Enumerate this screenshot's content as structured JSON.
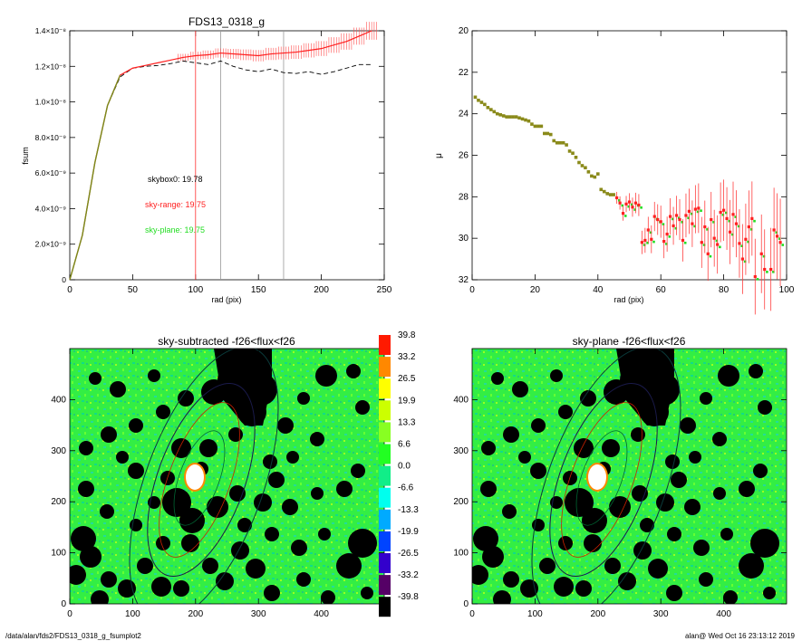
{
  "footer": {
    "path": "/data/alan/fds2/FDS13_0318_g_fsumplot2",
    "user": "alan@",
    "timestamp": "Wed Oct 16 23:13:12 2019"
  },
  "colors": {
    "black_curve": "#000000",
    "red": "#ff2020",
    "green": "#22dd22",
    "olive": "#8a8a1a",
    "gray_marker": "#888888"
  },
  "chart_data": [
    {
      "type": "line",
      "title": "FDS13_0318_g",
      "xlabel": "rad (pix)",
      "ylabel": "fsum",
      "xlim": [
        0,
        250
      ],
      "ylim": [
        0,
        1.4e-08
      ],
      "x_ticks": [
        "0",
        "50",
        "100",
        "150",
        "200",
        "250"
      ],
      "y_ticks": [
        "0",
        "2.0×10⁻⁹",
        "4.0×10⁻⁹",
        "6.0×10⁻⁹",
        "8.0×10⁻⁹",
        "1.0×10⁻⁸",
        "1.2×10⁻⁸",
        "1.4×10⁻⁸"
      ],
      "vertical_lines": [
        {
          "x": 100,
          "color": "red"
        },
        {
          "x": 120,
          "color": "gray"
        },
        {
          "x": 170,
          "color": "gray"
        }
      ],
      "annotations": [
        {
          "text": "skybox0: 19.78",
          "color": "black"
        },
        {
          "text": "sky-range: 19.75",
          "color": "red"
        },
        {
          "text": "sky-plane: 19.75",
          "color": "green"
        }
      ],
      "series": [
        {
          "style": "dashed-black",
          "x": [
            0,
            10,
            20,
            30,
            40,
            50,
            60,
            70,
            80,
            90,
            100,
            110,
            120,
            130,
            140,
            150,
            160,
            170,
            180,
            190,
            200,
            210,
            220,
            230,
            240
          ],
          "y": [
            0,
            2.5e-09,
            6.6e-09,
            9.8e-09,
            1.14e-08,
            1.19e-08,
            1.2e-08,
            1.205e-08,
            1.215e-08,
            1.23e-08,
            1.22e-08,
            1.21e-08,
            1.23e-08,
            1.2e-08,
            1.18e-08,
            1.17e-08,
            1.185e-08,
            1.165e-08,
            1.16e-08,
            1.17e-08,
            1.155e-08,
            1.17e-08,
            1.19e-08,
            1.21e-08,
            1.21e-08
          ]
        },
        {
          "style": "red-with-errorbars",
          "x": [
            0,
            10,
            20,
            30,
            40,
            50,
            60,
            70,
            80,
            90,
            100,
            110,
            120,
            130,
            140,
            150,
            160,
            170,
            180,
            190,
            200,
            210,
            220,
            230,
            240
          ],
          "y": [
            0,
            2.5e-09,
            6.6e-09,
            9.8e-09,
            1.15e-08,
            1.19e-08,
            1.205e-08,
            1.22e-08,
            1.235e-08,
            1.25e-08,
            1.26e-08,
            1.265e-08,
            1.275e-08,
            1.27e-08,
            1.265e-08,
            1.26e-08,
            1.27e-08,
            1.275e-08,
            1.28e-08,
            1.29e-08,
            1.3e-08,
            1.32e-08,
            1.34e-08,
            1.37e-08,
            1.4e-08
          ]
        }
      ]
    },
    {
      "type": "scatter",
      "xlabel": "rad (pix)",
      "ylabel": "μ",
      "xlim": [
        0,
        100
      ],
      "ylim": [
        32,
        20
      ],
      "x_ticks": [
        "0",
        "20",
        "40",
        "60",
        "80",
        "100"
      ],
      "y_ticks": [
        "20",
        "22",
        "24",
        "26",
        "28",
        "30",
        "32"
      ],
      "points": [
        [
          1,
          23.2
        ],
        [
          2,
          23.35
        ],
        [
          3,
          23.45
        ],
        [
          4,
          23.55
        ],
        [
          5,
          23.7
        ],
        [
          6,
          23.8
        ],
        [
          7,
          23.9
        ],
        [
          8,
          24.0
        ],
        [
          9,
          24.05
        ],
        [
          10,
          24.1
        ],
        [
          11,
          24.15
        ],
        [
          12,
          24.15
        ],
        [
          13,
          24.15
        ],
        [
          14,
          24.15
        ],
        [
          15,
          24.2
        ],
        [
          16,
          24.25
        ],
        [
          17,
          24.3
        ],
        [
          18,
          24.35
        ],
        [
          19,
          24.5
        ],
        [
          20,
          24.6
        ],
        [
          21,
          24.6
        ],
        [
          22,
          24.6
        ],
        [
          23,
          24.95
        ],
        [
          24,
          24.95
        ],
        [
          25,
          25.0
        ],
        [
          26,
          25.3
        ],
        [
          27,
          25.4
        ],
        [
          28,
          25.4
        ],
        [
          29,
          25.4
        ],
        [
          30,
          25.5
        ],
        [
          31,
          25.8
        ],
        [
          32,
          25.9
        ],
        [
          33,
          26.1
        ],
        [
          34,
          26.35
        ],
        [
          35,
          26.5
        ],
        [
          36,
          26.6
        ],
        [
          37,
          26.8
        ],
        [
          38,
          27.0
        ],
        [
          39,
          27.05
        ],
        [
          40,
          26.9
        ],
        [
          41,
          27.65
        ],
        [
          42,
          27.75
        ],
        [
          43,
          27.85
        ],
        [
          44,
          27.9
        ],
        [
          45,
          27.9
        ],
        [
          46,
          28.05
        ],
        [
          47,
          28.3
        ],
        [
          48,
          28.8
        ],
        [
          49,
          28.35
        ],
        [
          50,
          28.25
        ],
        [
          51,
          28.5
        ],
        [
          52,
          28.3
        ],
        [
          53,
          28.4
        ],
        [
          54,
          30.2
        ],
        [
          55,
          30.1
        ],
        [
          56,
          29.6
        ],
        [
          57,
          30.05
        ],
        [
          58,
          28.95
        ],
        [
          59,
          29.1
        ],
        [
          60,
          29.2
        ],
        [
          61,
          30.15
        ],
        [
          62,
          29.8
        ],
        [
          63,
          28.95
        ],
        [
          64,
          29.4
        ],
        [
          65,
          28.9
        ],
        [
          66,
          29.1
        ],
        [
          67,
          30.1
        ],
        [
          68,
          28.9
        ],
        [
          69,
          28.7
        ],
        [
          70,
          29.3
        ],
        [
          71,
          28.6
        ],
        [
          72,
          28.55
        ],
        [
          73,
          30.2
        ],
        [
          74,
          29.45
        ],
        [
          75,
          30.75
        ],
        [
          76,
          29.1
        ],
        [
          77,
          30.0
        ],
        [
          78,
          30.3
        ],
        [
          79,
          28.75
        ],
        [
          80,
          28.65
        ],
        [
          81,
          29.05
        ],
        [
          82,
          29.7
        ],
        [
          83,
          28.85
        ],
        [
          84,
          29.3
        ],
        [
          85,
          30.25
        ],
        [
          86,
          31.0
        ],
        [
          87,
          30.05
        ],
        [
          88,
          29.45
        ],
        [
          89,
          29.05
        ],
        [
          90,
          31.85
        ],
        [
          92,
          30.75
        ],
        [
          93,
          31.5
        ],
        [
          95,
          31.5
        ],
        [
          96,
          29.6
        ],
        [
          97,
          29.9
        ],
        [
          98,
          30.2
        ]
      ]
    },
    {
      "type": "heatmap",
      "title": "sky-subtracted -f26<flux<f26",
      "xlim": [
        0,
        500
      ],
      "ylim": [
        0,
        500
      ],
      "x_ticks": [
        "0",
        "100",
        "200",
        "300",
        "400"
      ],
      "y_ticks": [
        "0",
        "100",
        "200",
        "300",
        "400"
      ]
    },
    {
      "type": "heatmap",
      "title": "sky-plane -f26<flux<f26",
      "xlim": [
        0,
        500
      ],
      "ylim": [
        0,
        500
      ],
      "x_ticks": [
        "0",
        "100",
        "200",
        "300",
        "400"
      ],
      "y_ticks": [
        "0",
        "100",
        "200",
        "300",
        "400"
      ]
    }
  ],
  "colorbar": {
    "labels": [
      "39.8",
      "33.2",
      "26.5",
      "19.9",
      "13.3",
      "6.6",
      "0.0",
      "-6.6",
      "-13.3",
      "-19.9",
      "-26.5",
      "-33.2",
      "-39.8"
    ],
    "colors": [
      "#ff1a00",
      "#ff8800",
      "#ffff00",
      "#ccff00",
      "#88ff22",
      "#22ff22",
      "#11ee88",
      "#00ffee",
      "#00aaff",
      "#0044ff",
      "#3300cc",
      "#550066",
      "#000000"
    ]
  }
}
